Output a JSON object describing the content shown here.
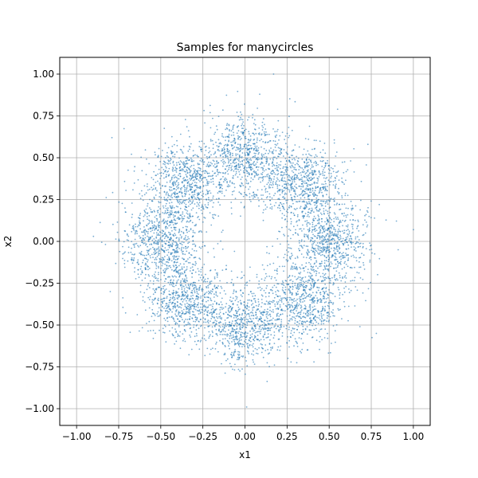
{
  "chart_data": {
    "type": "scatter",
    "title": "Samples for manycircles",
    "xlabel": "x1",
    "ylabel": "x2",
    "xlim": [
      -1.1,
      1.1
    ],
    "ylim": [
      -1.1,
      1.1
    ],
    "xticks": [
      -1.0,
      -0.75,
      -0.5,
      -0.25,
      0.0,
      0.25,
      0.5,
      0.75,
      1.0
    ],
    "yticks": [
      -1.0,
      -0.75,
      -0.5,
      -0.25,
      0.0,
      0.25,
      0.5,
      0.75,
      1.0
    ],
    "xtick_labels": [
      "−1.00",
      "−0.75",
      "−0.50",
      "−0.25",
      "0.00",
      "0.25",
      "0.50",
      "0.75",
      "1.00"
    ],
    "ytick_labels": [
      "−1.00",
      "−0.75",
      "−0.50",
      "−0.25",
      "0.00",
      "0.25",
      "0.50",
      "0.75",
      "1.00"
    ],
    "grid": true,
    "point_color": "#1f77b4",
    "point_alpha": 0.6,
    "clusters": [
      {
        "center": [
          0.0,
          0.5
        ],
        "spread": 0.12,
        "count": 720
      },
      {
        "center": [
          0.35,
          0.35
        ],
        "spread": 0.12,
        "count": 720
      },
      {
        "center": [
          0.5,
          0.0
        ],
        "spread": 0.12,
        "count": 720
      },
      {
        "center": [
          0.35,
          -0.35
        ],
        "spread": 0.12,
        "count": 720
      },
      {
        "center": [
          0.0,
          -0.5
        ],
        "spread": 0.12,
        "count": 720
      },
      {
        "center": [
          -0.35,
          -0.35
        ],
        "spread": 0.12,
        "count": 720
      },
      {
        "center": [
          -0.5,
          0.0
        ],
        "spread": 0.12,
        "count": 720
      },
      {
        "center": [
          -0.35,
          0.35
        ],
        "spread": 0.12,
        "count": 720
      }
    ],
    "outliers": [
      [
        0.17,
        1.0
      ],
      [
        0.01,
        -0.99
      ],
      [
        1.0,
        0.07
      ],
      [
        -0.79,
        0.62
      ],
      [
        0.55,
        0.79
      ],
      [
        -0.8,
        -0.3
      ],
      [
        0.78,
        -0.55
      ],
      [
        0.91,
        -0.05
      ],
      [
        -0.9,
        0.03
      ],
      [
        0.73,
        0.58
      ]
    ]
  }
}
